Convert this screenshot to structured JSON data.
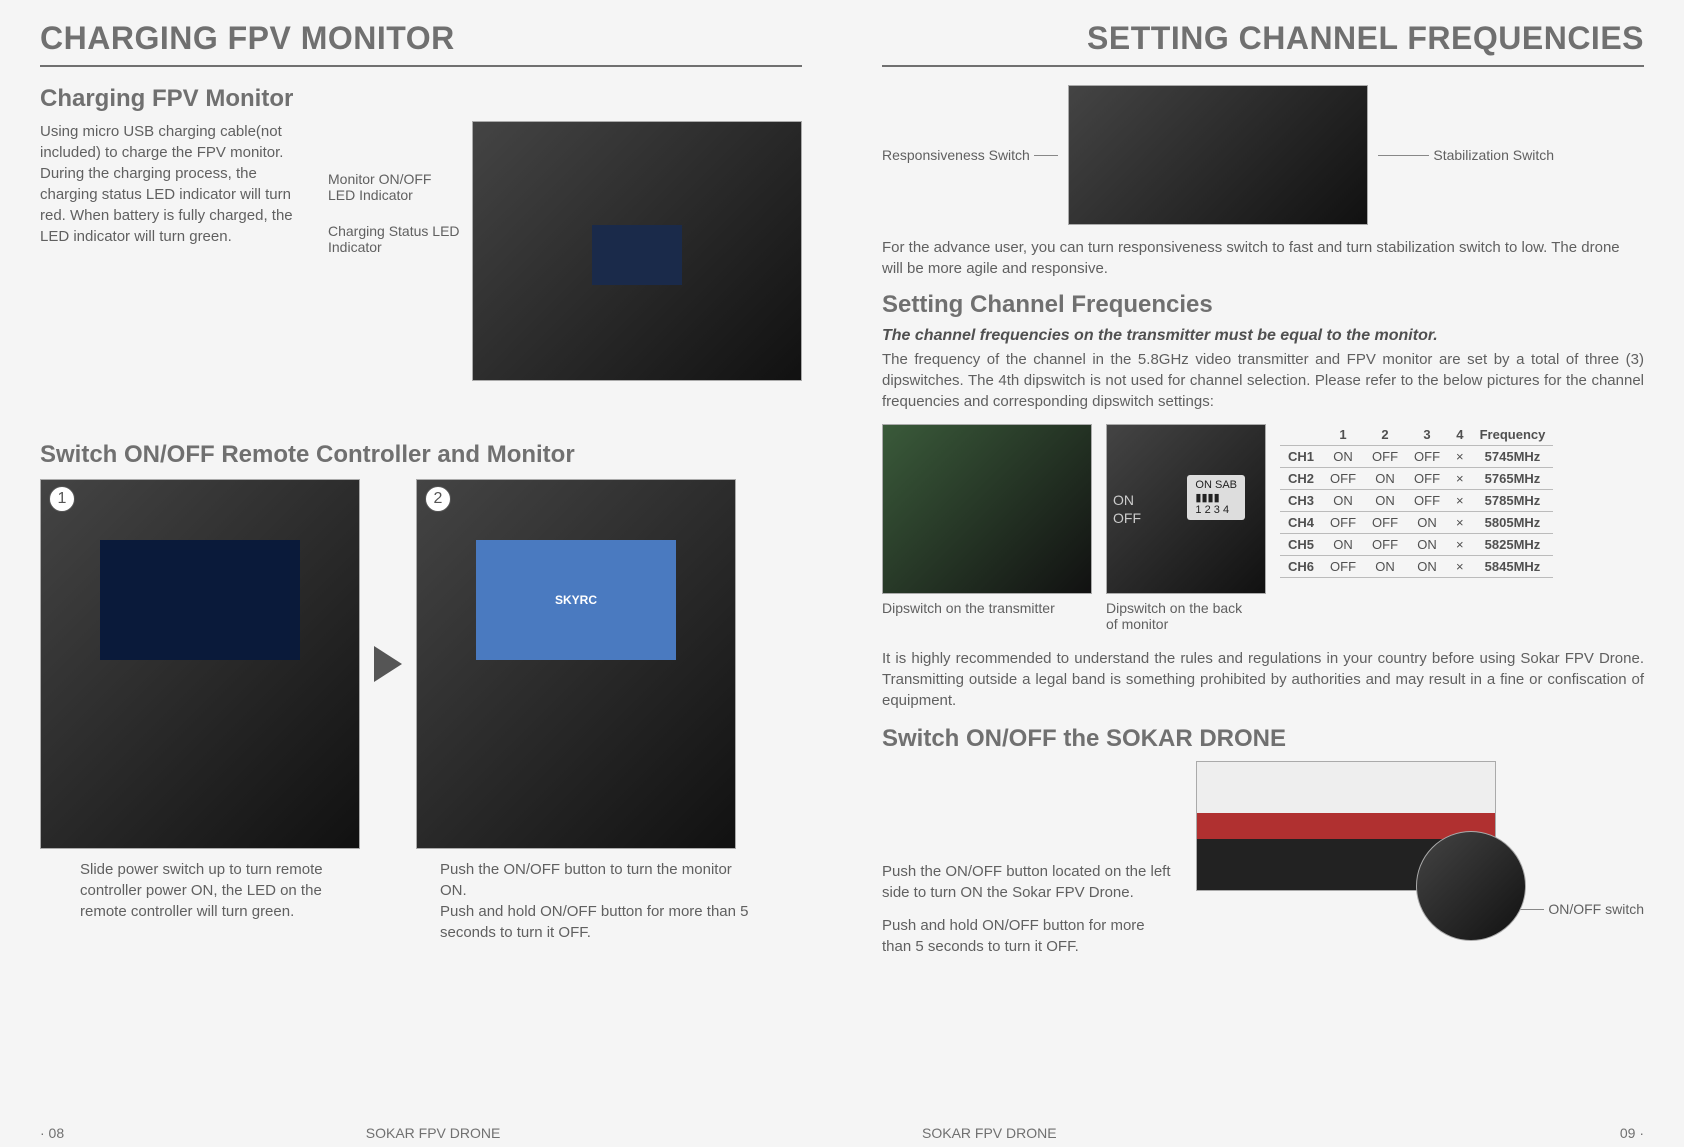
{
  "left": {
    "header": "CHARGING FPV MONITOR",
    "section1_title": "Charging FPV Monitor",
    "section1_body": "Using micro USB charging cable(not included) to charge the FPV monitor. During the charging process, the charging status LED indicator will turn red. When battery is fully charged, the LED indicator will turn green.",
    "callout_monitor_led": "Monitor ON/OFF LED Indicator",
    "callout_charging_led": "Charging Status LED Indicator",
    "section2_title": "Switch ON/OFF Remote Controller and Monitor",
    "step1_num": "1",
    "step2_num": "2",
    "step1_caption": "Slide power switch up to turn remote controller power ON, the LED on the remote controller will turn green.",
    "step2_caption": "Push the ON/OFF button to turn the monitor ON.\nPush and hold ON/OFF button for more than 5 seconds  to turn it OFF.",
    "page_num": "· 08",
    "footer_center": "SOKAR FPV DRONE"
  },
  "right": {
    "header": "SETTING CHANNEL FREQUENCIES",
    "callout_responsiveness": "Responsiveness Switch",
    "callout_stabilization": "Stabilization Switch",
    "advance_text": "For the advance user, you can turn responsiveness switch to fast and turn stabilization switch to low. The drone will be more agile and responsive.",
    "section1_title": "Setting Channel Frequencies",
    "italic_note": "The channel  frequencies on the transmitter must be equal to the monitor.",
    "freq_body": "The frequency of the channel in the 5.8GHz video transmitter and FPV monitor are set by a total of three (3) dipswitches. The 4th dipswitch is not used for channel selection. Please refer to the below pictures for the channel frequencies and corresponding dipswitch settings:",
    "dip_tx_caption": "Dipswitch on the transmitter",
    "dip_mon_caption": "Dipswitch on the back of monitor",
    "freq_table": {
      "headers": [
        "",
        "1",
        "2",
        "3",
        "4",
        "Frequency"
      ],
      "rows": [
        [
          "CH1",
          "ON",
          "OFF",
          "OFF",
          "×",
          "5745MHz"
        ],
        [
          "CH2",
          "OFF",
          "ON",
          "OFF",
          "×",
          "5765MHz"
        ],
        [
          "CH3",
          "ON",
          "ON",
          "OFF",
          "×",
          "5785MHz"
        ],
        [
          "CH4",
          "OFF",
          "OFF",
          "ON",
          "×",
          "5805MHz"
        ],
        [
          "CH5",
          "ON",
          "OFF",
          "ON",
          "×",
          "5825MHz"
        ],
        [
          "CH6",
          "OFF",
          "ON",
          "ON",
          "×",
          "5845MHz"
        ]
      ]
    },
    "warning_text": "It is highly recommended to understand the rules and regulations in your country before using Sokar FPV Drone. Transmitting outside a legal band is something prohibited by authorities and may result in a fine or confiscation of equipment.",
    "section2_title": "Switch ON/OFF the SOKAR DRONE",
    "drone_on_text": "Push the ON/OFF button located on the left side to turn ON the Sokar FPV Drone.",
    "drone_off_text": "Push and hold ON/OFF button for more than 5 seconds  to turn it OFF.",
    "callout_onoff": "ON/OFF switch",
    "page_num": "09 ·",
    "footer_center": "SOKAR FPV DRONE"
  },
  "colors": {
    "text": "#606060",
    "heading": "#707070",
    "rule": "#707070",
    "photo_border": "#aaaaaa"
  }
}
